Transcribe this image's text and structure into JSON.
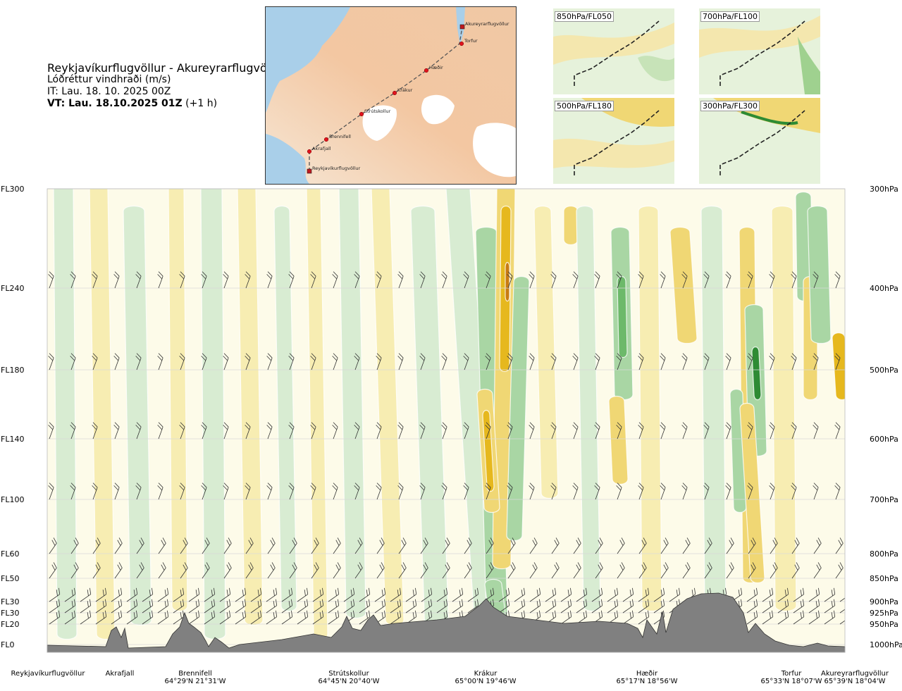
{
  "header": {
    "route": "Reykjavíkurflugvöllur - Akureyrarflugvöllur",
    "quantity": "Lóðréttur vindhraði (m/s)",
    "issue_time": "IT: Lau. 18. 10. 2025 00Z",
    "valid_label": "VT: Lau. 18.10.2025 01Z",
    "valid_offset": "(+1 h)"
  },
  "map": {
    "waypoints": [
      "Akureyrarflugvöllur",
      "Torfur",
      "Hæðir",
      "Krákur",
      "Strútskollur",
      "Brennifell",
      "Akrafjall",
      "Reykjavíkurflugvöllur"
    ],
    "colors": {
      "land": "#f3c9a6",
      "water": "#a9cfe9",
      "ice": "#ffffff",
      "route": "#555555",
      "point": "#e0141e"
    }
  },
  "mini_maps": [
    "850hPa/FL050",
    "700hPa/FL100",
    "500hPa/FL180",
    "300hPa/FL300"
  ],
  "chart_data": {
    "type": "heatmap",
    "title": "Reykjavíkurflugvöllur - Akureyrarflugvöllur",
    "zlabel": "Lóðréttur vindhraði (m/s)",
    "left_axis": [
      "FL300",
      "FL240",
      "FL180",
      "FL140",
      "FL100",
      "FL60",
      "FL50",
      "FL30",
      "FL30",
      "FL20",
      "FL0"
    ],
    "right_axis": [
      "300hPa",
      "400hPa",
      "500hPa",
      "600hPa",
      "700hPa",
      "800hPa",
      "850hPa",
      "900hPa",
      "925hPa",
      "950hPa",
      "1000hPa"
    ],
    "pressure_levels_hPa": [
      300,
      400,
      500,
      600,
      700,
      800,
      850,
      900,
      925,
      950,
      1000
    ],
    "x_locations": [
      {
        "name": "Reykjavíkurflugvöllur",
        "coord": ""
      },
      {
        "name": "Akrafjall",
        "coord": ""
      },
      {
        "name": "Brennifell",
        "coord": "64°29'N 21°31'W"
      },
      {
        "name": "Strútskollur",
        "coord": "64°45'N 20°40'W"
      },
      {
        "name": "Krákur",
        "coord": "65°00'N 19°46'W"
      },
      {
        "name": "Hæðir",
        "coord": "65°17'N 18°56'W"
      },
      {
        "name": "Torfur",
        "coord": "65°33'N 18°07'W"
      },
      {
        "name": "Akureyrarflugvöllur",
        "coord": "65°39'N 18°04'W"
      }
    ],
    "colors": {
      "up_weak": "#d8ecd2",
      "up_mod": "#a9d6a4",
      "up_strong": "#6db96a",
      "up_max": "#2e8b34",
      "down_weak": "#f7edb2",
      "down_mod": "#f0d774",
      "down_strong": "#e6b81e",
      "down_max": "#c97c12",
      "terrain": "#808080",
      "neutral": "#fdfbe9"
    },
    "grid": true
  }
}
